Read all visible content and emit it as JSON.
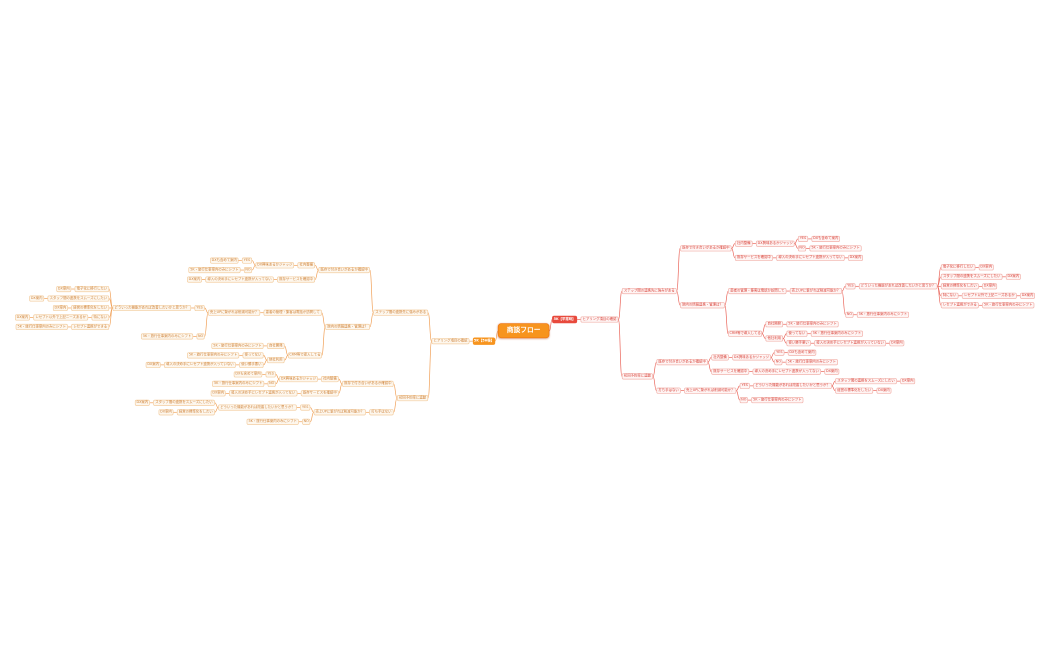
{
  "app": {
    "background": "#ffffff",
    "title": "商談フロー"
  },
  "style": {
    "central_bg": "#f7941e",
    "central_border": "#ef7612",
    "right_main": "#e8493c",
    "right_text": "#d9453c",
    "right_border": "#f2b1aa",
    "right_bg": "#fef5f4",
    "right_edge": "#e96055",
    "left_main": "#f7941e",
    "left_text": "#cf833a",
    "left_border": "#f3cda0",
    "left_bg": "#fdf7ee",
    "left_edge": "#f09d52"
  },
  "tree": {
    "root": {
      "label": "商談フロー"
    },
    "right": {
      "label": "5K【平常時】",
      "children": [
        {
          "label": "ヒアリング項目の確認",
          "children": [
            {
              "label": "ステップ間の連携先に強みがある",
              "children": [
                {
                  "label": "既存で付き合いがあるか確認中",
                  "children": [
                    {
                      "label": "社内整備",
                      "children": [
                        {
                          "label": "DX興味あるかジャッジ",
                          "children": [
                            {
                              "label": "YES",
                              "children": [
                                {
                                  "label": "DXも含めて案内"
                                }
                              ]
                            },
                            {
                              "label": "NO",
                              "children": [
                                {
                                  "label": "5K・旅行仕事案内のみにシフト"
                                }
                              ]
                            }
                          ]
                        }
                      ]
                    },
                    {
                      "label": "既存サービスを確認中",
                      "children": [
                        {
                          "label": "導入の決め手にレセプト連携が入ってない",
                          "children": [
                            {
                              "label": "DX案内"
                            }
                          ]
                        }
                      ]
                    }
                  ]
                },
                {
                  "label": "院内の情報連携・管理は？",
                  "children": [
                    {
                      "label": "患者の管理・集客は電話か訪問して",
                      "children": [
                        {
                          "label": "売上UPに繋がれば削減可能か？",
                          "children": [
                            {
                              "label": "YES",
                              "children": [
                                {
                                  "label": "どういった機能があれば改善したいかと思うか？",
                                  "children": [
                                    {
                                      "label": "電子化に移行したい",
                                      "children": [
                                        {
                                          "label": "DX案内"
                                        }
                                      ]
                                    },
                                    {
                                      "label": "スタッフ間の連携をスムーズにしたい",
                                      "children": [
                                        {
                                          "label": "DX案内"
                                        }
                                      ]
                                    },
                                    {
                                      "label": "経営の標準化をしたい",
                                      "children": [
                                        {
                                          "label": "DX案内"
                                        }
                                      ]
                                    },
                                    {
                                      "label": "特にない",
                                      "children": [
                                        {
                                          "label": "レセプト以外で上記ニーズあるか",
                                          "children": [
                                            {
                                              "label": "DX案内"
                                            }
                                          ]
                                        }
                                      ]
                                    },
                                    {
                                      "label": "レセプト連携ができる",
                                      "children": [
                                        {
                                          "label": "5K・旅行仕事案内のみにシフト"
                                        }
                                      ]
                                    }
                                  ]
                                }
                              ]
                            },
                            {
                              "label": "NO",
                              "children": [
                                {
                                  "label": "5K・旅行仕事案内のみにシフト"
                                }
                              ]
                            }
                          ]
                        }
                      ]
                    },
                    {
                      "label": "CRM等で導入してる",
                      "children": [
                        {
                          "label": "自社開発",
                          "children": [
                            {
                              "label": "5K・旅行仕事案内のみにシフト"
                            }
                          ]
                        },
                        {
                          "label": "他社利用",
                          "children": [
                            {
                              "label": "使ってない",
                              "children": [
                                {
                                  "label": "5K・旅行仕事案内のみにシフト"
                                }
                              ]
                            },
                            {
                              "label": "使い勝手悪い",
                              "children": [
                                {
                                  "label": "導入の決め手にレセプト連携が入っていない",
                                  "children": [
                                    {
                                      "label": "DX案内"
                                    }
                                  ]
                                }
                              ]
                            }
                          ]
                        }
                      ]
                    }
                  ]
                }
              ]
            },
            {
              "label": "初回予約率に連動",
              "children": [
                {
                  "label": "既存で付き合いがあるか確認中",
                  "children": [
                    {
                      "label": "社内整備",
                      "children": [
                        {
                          "label": "DX興味あるかジャッジ",
                          "children": [
                            {
                              "label": "YES",
                              "children": [
                                {
                                  "label": "DXも含めて案内"
                                }
                              ]
                            },
                            {
                              "label": "NO",
                              "children": [
                                {
                                  "label": "5K・旅行仕事案内のみにシフト"
                                }
                              ]
                            }
                          ]
                        }
                      ]
                    },
                    {
                      "label": "既存サービスを確認中",
                      "children": [
                        {
                          "label": "導入の決め手にレセプト連携が入ってない",
                          "children": [
                            {
                              "label": "DX案内"
                            }
                          ]
                        }
                      ]
                    }
                  ]
                },
                {
                  "label": "打ち手はない",
                  "children": [
                    {
                      "label": "売上UPに繋がれば削減可能か？",
                      "children": [
                        {
                          "label": "YES",
                          "children": [
                            {
                              "label": "どういった機能があれば改善したいかと思うか？",
                              "children": [
                                {
                                  "label": "スタッフ間の連携をスムーズにしたい",
                                  "children": [
                                    {
                                      "label": "DX案内"
                                    }
                                  ]
                                },
                                {
                                  "label": "経営の標準化をしたい",
                                  "children": [
                                    {
                                      "label": "DX案内"
                                    }
                                  ]
                                }
                              ]
                            }
                          ]
                        },
                        {
                          "label": "NO",
                          "children": [
                            {
                              "label": "5K・旅行仕事案内のみにシフト"
                            }
                          ]
                        }
                      ]
                    }
                  ]
                }
              ]
            }
          ]
        }
      ]
    },
    "left": {
      "label": "5K【5H後】",
      "children": [
        {
          "label": "ヒアリング項目の確認",
          "children": [
            {
              "label": "ステップ間の連携先に強みがある",
              "children": [
                {
                  "label": "既存で付き合いがあるか確認中",
                  "children": [
                    {
                      "label": "社内整備",
                      "children": [
                        {
                          "label": "DX興味あるかジャッジ",
                          "children": [
                            {
                              "label": "YES",
                              "children": [
                                {
                                  "label": "DXも含めて案内"
                                }
                              ]
                            },
                            {
                              "label": "NO",
                              "children": [
                                {
                                  "label": "5K・旅行仕事案内のみにシフト"
                                }
                              ]
                            }
                          ]
                        }
                      ]
                    },
                    {
                      "label": "既存サービスを確認中",
                      "children": [
                        {
                          "label": "導入の決め手にレセプト連携が入ってない",
                          "children": [
                            {
                              "label": "DX案内"
                            }
                          ]
                        }
                      ]
                    }
                  ]
                },
                {
                  "label": "院内の情報連携・管理は？",
                  "children": [
                    {
                      "label": "患者の管理・集客は電話か訪問して",
                      "children": [
                        {
                          "label": "売上UPに繋がれば削減可能か？",
                          "children": [
                            {
                              "label": "YES",
                              "children": [
                                {
                                  "label": "どういった機能があれば改善したいかと思うか？",
                                  "children": [
                                    {
                                      "label": "電子化に移行したい",
                                      "children": [
                                        {
                                          "label": "DX案内"
                                        }
                                      ]
                                    },
                                    {
                                      "label": "スタッフ間の連携をスムーズにしたい",
                                      "children": [
                                        {
                                          "label": "DX案内"
                                        }
                                      ]
                                    },
                                    {
                                      "label": "経営の標準化をしたい",
                                      "children": [
                                        {
                                          "label": "DX案内"
                                        }
                                      ]
                                    },
                                    {
                                      "label": "特にない",
                                      "children": [
                                        {
                                          "label": "レセプト以外で上記ニーズあるか",
                                          "children": [
                                            {
                                              "label": "DX案内"
                                            }
                                          ]
                                        }
                                      ]
                                    },
                                    {
                                      "label": "レセプト連携ができる",
                                      "children": [
                                        {
                                          "label": "5K・旅行仕事案内のみにシフト"
                                        }
                                      ]
                                    }
                                  ]
                                }
                              ]
                            },
                            {
                              "label": "NO",
                              "children": [
                                {
                                  "label": "5K・旅行仕事案内のみにシフト"
                                }
                              ]
                            }
                          ]
                        }
                      ]
                    },
                    {
                      "label": "CRM等で導入してる",
                      "children": [
                        {
                          "label": "自社開発",
                          "children": [
                            {
                              "label": "5K・旅行仕事案内のみにシフト"
                            }
                          ]
                        },
                        {
                          "label": "他社利用",
                          "children": [
                            {
                              "label": "使ってない",
                              "children": [
                                {
                                  "label": "5K・旅行仕事案内のみにシフト"
                                }
                              ]
                            },
                            {
                              "label": "使い勝手悪い",
                              "children": [
                                {
                                  "label": "導入の決め手にレセプト連携が入っていない",
                                  "children": [
                                    {
                                      "label": "DX案内"
                                    }
                                  ]
                                }
                              ]
                            }
                          ]
                        }
                      ]
                    }
                  ]
                }
              ]
            },
            {
              "label": "初回予約率に連動",
              "children": [
                {
                  "label": "既存で付き合いがあるか確認中",
                  "children": [
                    {
                      "label": "社内整備",
                      "children": [
                        {
                          "label": "DX興味あるかジャッジ",
                          "children": [
                            {
                              "label": "YES",
                              "children": [
                                {
                                  "label": "DXも含めて案内"
                                }
                              ]
                            },
                            {
                              "label": "NO",
                              "children": [
                                {
                                  "label": "5K・旅行仕事案内のみにシフト"
                                }
                              ]
                            }
                          ]
                        }
                      ]
                    },
                    {
                      "label": "既存サービスを確認中",
                      "children": [
                        {
                          "label": "導入の決め手にレセプト連携が入ってない",
                          "children": [
                            {
                              "label": "DX案内"
                            }
                          ]
                        }
                      ]
                    }
                  ]
                },
                {
                  "label": "打ち手はない",
                  "children": [
                    {
                      "label": "売上UPに繋がれば削減可能か？",
                      "children": [
                        {
                          "label": "YES",
                          "children": [
                            {
                              "label": "どういった機能があれば改善したいかと思うか？",
                              "children": [
                                {
                                  "label": "スタッフ間の連携をスムーズにしたい",
                                  "children": [
                                    {
                                      "label": "DX案内"
                                    }
                                  ]
                                },
                                {
                                  "label": "経営の標準化をしたい",
                                  "children": [
                                    {
                                      "label": "DX案内"
                                    }
                                  ]
                                }
                              ]
                            }
                          ]
                        },
                        {
                          "label": "NO",
                          "children": [
                            {
                              "label": "5K・旅行仕事案内のみにシフト"
                            }
                          ]
                        }
                      ]
                    }
                  ]
                }
              ]
            }
          ]
        }
      ]
    }
  }
}
